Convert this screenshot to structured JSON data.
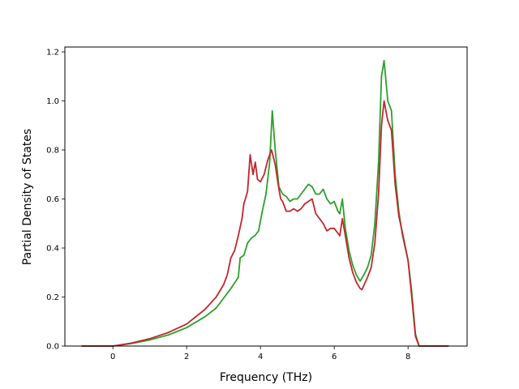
{
  "chart_data": {
    "type": "line",
    "title": "",
    "xlabel": "Frequency (THz)",
    "ylabel": "Partial Density of States",
    "xlim": [
      -1.3,
      9.6
    ],
    "ylim": [
      0.0,
      1.22
    ],
    "xticks": [
      0,
      2,
      4,
      6,
      8
    ],
    "yticks": [
      0.0,
      0.2,
      0.4,
      0.6,
      0.8,
      1.0,
      1.2
    ],
    "xtick_labels": [
      "0",
      "2",
      "4",
      "6",
      "8"
    ],
    "ytick_labels": [
      "0.0",
      "0.2",
      "0.4",
      "0.6",
      "0.8",
      "1.0",
      "1.2"
    ],
    "grid": false,
    "legend": "none",
    "series": [
      {
        "color": "#2ca02c",
        "x": [
          -0.85,
          0.0,
          0.5,
          1.0,
          1.5,
          2.0,
          2.5,
          2.8,
          3.0,
          3.2,
          3.4,
          3.45,
          3.55,
          3.65,
          3.75,
          3.85,
          3.95,
          4.05,
          4.15,
          4.25,
          4.32,
          4.4,
          4.5,
          4.6,
          4.7,
          4.8,
          4.9,
          5.0,
          5.1,
          5.2,
          5.3,
          5.4,
          5.5,
          5.6,
          5.7,
          5.8,
          5.9,
          6.0,
          6.1,
          6.15,
          6.22,
          6.3,
          6.4,
          6.5,
          6.6,
          6.7,
          6.8,
          6.9,
          7.0,
          7.1,
          7.2,
          7.28,
          7.35,
          7.45,
          7.55,
          7.65,
          7.75,
          7.85,
          8.0,
          8.1,
          8.2,
          8.3,
          8.5,
          9.1
        ],
        "y": [
          0.0,
          0.0,
          0.01,
          0.025,
          0.045,
          0.075,
          0.12,
          0.155,
          0.195,
          0.235,
          0.28,
          0.36,
          0.37,
          0.42,
          0.44,
          0.45,
          0.47,
          0.55,
          0.62,
          0.75,
          0.96,
          0.8,
          0.65,
          0.62,
          0.61,
          0.59,
          0.6,
          0.6,
          0.62,
          0.64,
          0.66,
          0.65,
          0.62,
          0.62,
          0.64,
          0.6,
          0.58,
          0.59,
          0.55,
          0.54,
          0.6,
          0.48,
          0.39,
          0.33,
          0.29,
          0.265,
          0.29,
          0.32,
          0.37,
          0.5,
          0.75,
          1.1,
          1.165,
          1.0,
          0.96,
          0.7,
          0.55,
          0.45,
          0.35,
          0.22,
          0.05,
          0.0,
          0.0,
          0.0
        ]
      },
      {
        "color": "#c0272d",
        "x": [
          -0.85,
          0.0,
          0.5,
          1.0,
          1.5,
          2.0,
          2.5,
          2.8,
          3.0,
          3.1,
          3.2,
          3.3,
          3.4,
          3.5,
          3.55,
          3.65,
          3.72,
          3.8,
          3.86,
          3.92,
          4.0,
          4.1,
          4.2,
          4.3,
          4.4,
          4.5,
          4.55,
          4.6,
          4.7,
          4.8,
          4.9,
          5.0,
          5.1,
          5.2,
          5.3,
          5.4,
          5.5,
          5.6,
          5.7,
          5.8,
          5.9,
          6.0,
          6.1,
          6.15,
          6.22,
          6.3,
          6.4,
          6.5,
          6.6,
          6.7,
          6.75,
          6.9,
          7.0,
          7.1,
          7.2,
          7.28,
          7.35,
          7.45,
          7.55,
          7.65,
          7.75,
          7.85,
          8.0,
          8.1,
          8.2,
          8.3,
          8.5,
          9.1
        ],
        "y": [
          0.0,
          0.0,
          0.012,
          0.03,
          0.055,
          0.09,
          0.15,
          0.2,
          0.25,
          0.29,
          0.36,
          0.39,
          0.45,
          0.52,
          0.58,
          0.63,
          0.78,
          0.7,
          0.75,
          0.68,
          0.67,
          0.7,
          0.76,
          0.8,
          0.74,
          0.64,
          0.6,
          0.59,
          0.55,
          0.55,
          0.56,
          0.55,
          0.56,
          0.58,
          0.59,
          0.6,
          0.54,
          0.52,
          0.5,
          0.47,
          0.48,
          0.48,
          0.46,
          0.45,
          0.52,
          0.45,
          0.36,
          0.3,
          0.26,
          0.235,
          0.23,
          0.28,
          0.32,
          0.42,
          0.62,
          0.9,
          1.0,
          0.92,
          0.88,
          0.66,
          0.53,
          0.46,
          0.35,
          0.2,
          0.04,
          0.0,
          0.0,
          0.0
        ]
      }
    ]
  }
}
